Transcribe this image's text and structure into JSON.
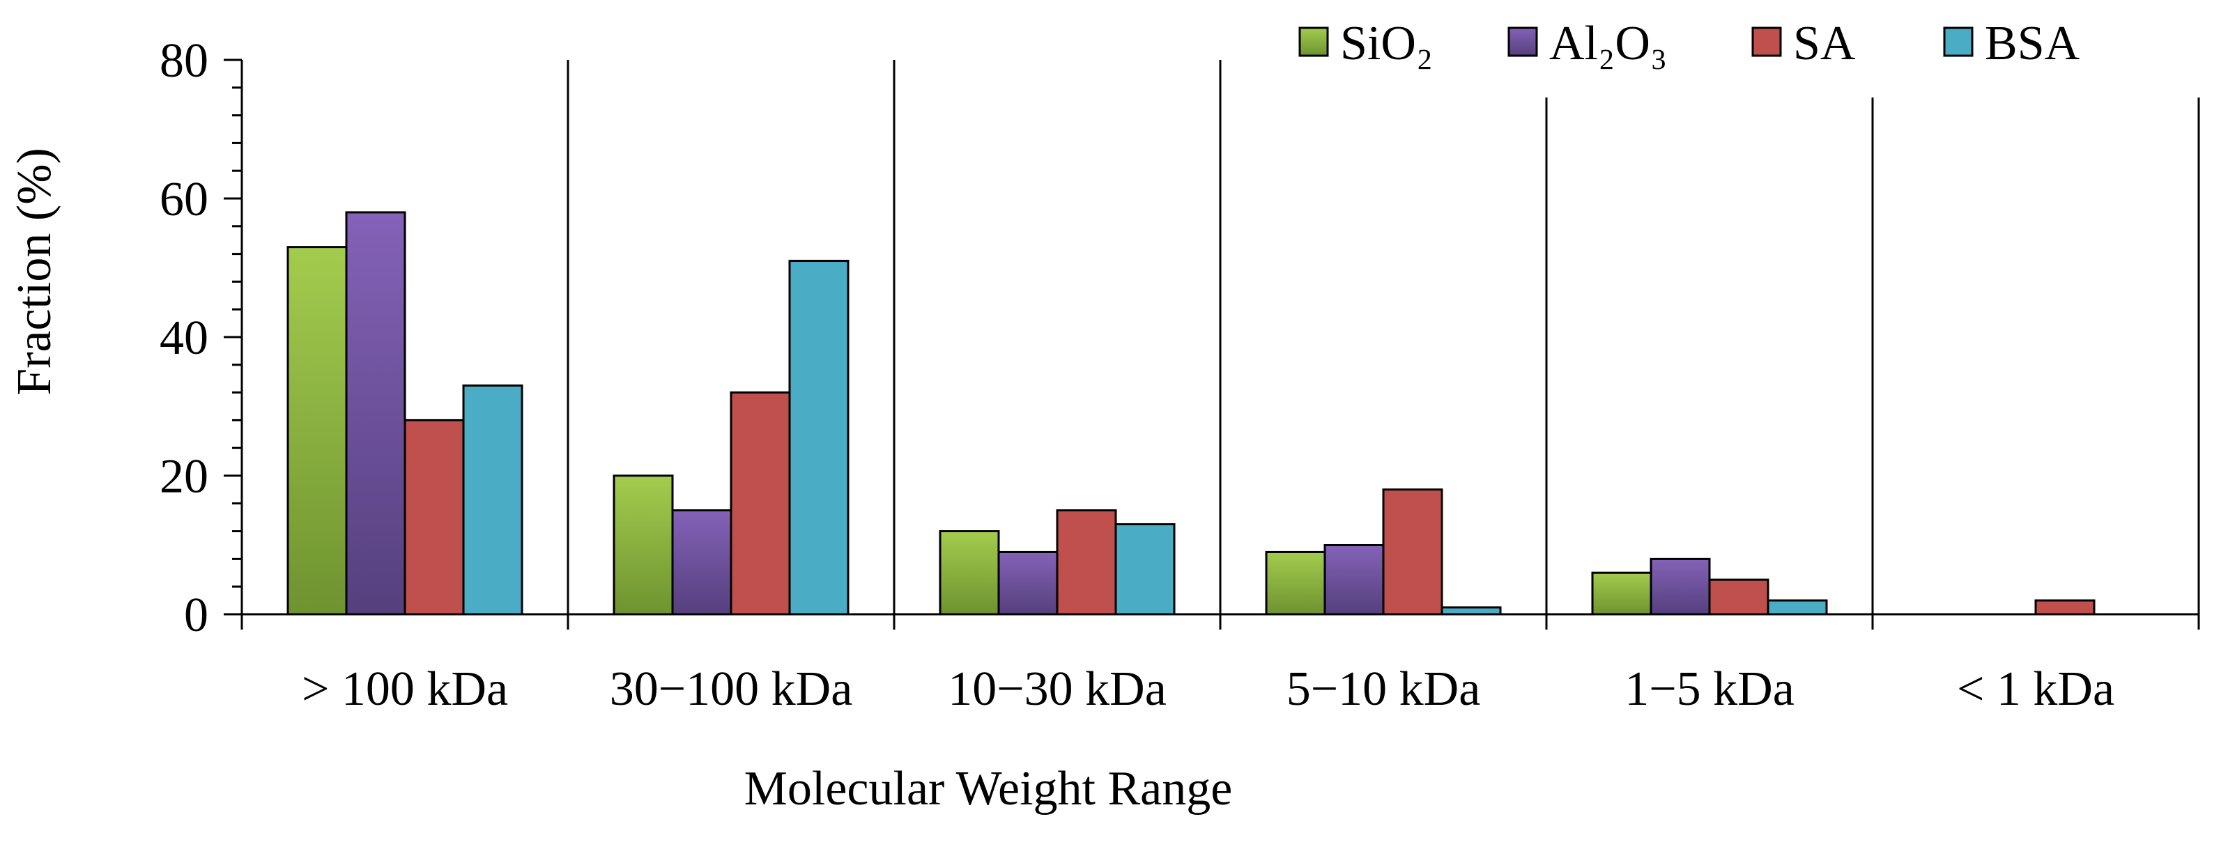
{
  "chart_data": {
    "type": "bar",
    "title": "",
    "xlabel": "Molecular Weight Range",
    "ylabel": "Fraction (%)",
    "ylim": [
      0,
      80
    ],
    "yticks": [
      0,
      20,
      40,
      60,
      80
    ],
    "ytick_labels": [
      "0",
      "20",
      "40",
      "60",
      "80"
    ],
    "minor_tick_step": 4,
    "grid": false,
    "legend_position": "top-right",
    "categories": [
      "> 100 kDa",
      "30−100 kDa",
      "10−30 kDa",
      "5−10 kDa",
      "1−5 kDa",
      "< 1 kDa"
    ],
    "series": [
      {
        "name": "SiO₂",
        "color": "#8dbb3c",
        "gradient": [
          "#a3cc4e",
          "#6e9330"
        ],
        "values": [
          53,
          20,
          12,
          9,
          6,
          0
        ]
      },
      {
        "name": "Al₂O₃",
        "color": "#7455a3",
        "gradient": [
          "#8462b8",
          "#55407d"
        ],
        "values": [
          58,
          15,
          9,
          10,
          8,
          0
        ]
      },
      {
        "name": "SA",
        "color": "#c0504d",
        "gradient": [
          "#c0504d",
          "#c0504d"
        ],
        "values": [
          28,
          32,
          15,
          18,
          5,
          2
        ]
      },
      {
        "name": "BSA",
        "color": "#4bacc6",
        "gradient": [
          "#4bacc6",
          "#4bacc6"
        ],
        "values": [
          33,
          51,
          13,
          1,
          2,
          0
        ]
      }
    ]
  }
}
